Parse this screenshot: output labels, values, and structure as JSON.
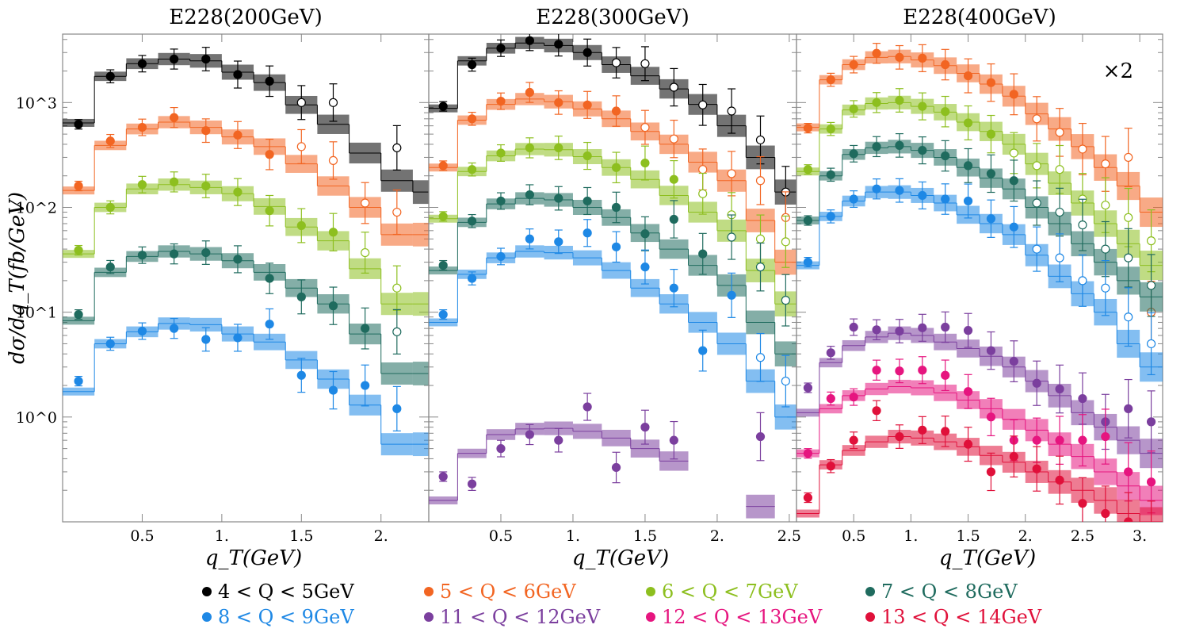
{
  "chart_data": {
    "type": "line",
    "ylabel": "dσ/dq_T(fb/GeV)",
    "xlabel": "q_T(GeV)",
    "y_scale": "log",
    "ylim": [
      0.1,
      4500
    ],
    "y_ticks": [
      "10^0",
      "10^1",
      "10^2",
      "10^3"
    ],
    "multiplier_label": "×2",
    "legend": [
      {
        "label": "4 < Q <  5GeV",
        "color": "#000000"
      },
      {
        "label": "5 < Q <  6GeV",
        "color": "#f26522"
      },
      {
        "label": "6 < Q <  7GeV",
        "color": "#8dbf1f"
      },
      {
        "label": "7 < Q <  8GeV",
        "color": "#1f6b5e"
      },
      {
        "label": "8 < Q <  9GeV",
        "color": "#1e88e5"
      },
      {
        "label": "11 < Q < 12GeV",
        "color": "#7b3f9e"
      },
      {
        "label": "12 < Q < 13GeV",
        "color": "#e6157f"
      },
      {
        "label": "13 < Q < 14GeV",
        "color": "#e0103a"
      }
    ],
    "panels": [
      {
        "title": "E228(200GeV)",
        "xlim": [
          0,
          2.3
        ],
        "x_ticks": [
          "0.5",
          "1.",
          "1.5",
          "2."
        ],
        "bin_edges": [
          0,
          0.2,
          0.4,
          0.6,
          0.8,
          1.0,
          1.2,
          1.4,
          1.6,
          1.8,
          2.0,
          2.2,
          2.3
        ],
        "series": [
          {
            "name": "4 < Q <  5GeV",
            "theory": [
              640,
              1780,
              2350,
              2600,
              2500,
              1950,
              1550,
              950,
              620,
              330,
              180,
              140
            ],
            "data": [
              620,
              1780,
              2350,
              2600,
              2600,
              1850,
              1600,
              1000,
              1000,
              null,
              370,
              null
            ],
            "open_from": 7
          },
          {
            "name": "5 < Q <  6GeV",
            "theory": [
              145,
              390,
              560,
              650,
              580,
              470,
              380,
              260,
              160,
              100,
              55,
              55
            ],
            "data": [
              160,
              430,
              580,
              720,
              540,
              490,
              320,
              380,
              280,
              110,
              90,
              null
            ],
            "open_from": 7
          },
          {
            "name": "6 < Q <  7GeV",
            "theory": [
              36,
              100,
              150,
              165,
              155,
              135,
              102,
              65,
              48,
              26,
              12,
              12
            ],
            "data": [
              39,
              100,
              165,
              175,
              160,
              140,
              93,
              67,
              58,
              37,
              17,
              null
            ],
            "open_from": 9
          },
          {
            "name": "7 < Q <  8GeV",
            "theory": [
              8.3,
              24,
              34,
              38,
              36,
              31,
              24,
              17,
              12,
              6.2,
              2.6,
              2.6
            ],
            "data": [
              9.5,
              27,
              35,
              36,
              37,
              32,
              21,
              14,
              11.5,
              7,
              6.5,
              null
            ],
            "open_from": 10
          },
          {
            "name": "8 < Q <  9GeV",
            "theory": [
              1.75,
              5,
              6.5,
              7.8,
              7.6,
              6.2,
              5.2,
              3.5,
              2.3,
              1.3,
              0.55,
              0.55
            ],
            "data": [
              2.2,
              5,
              6.6,
              7,
              5.5,
              5.7,
              7.7,
              2.5,
              1.8,
              2,
              1.2,
              null
            ],
            "open_from": 99
          }
        ]
      },
      {
        "title": "E228(300GeV)",
        "xlim": [
          0,
          2.55
        ],
        "x_ticks": [
          "0.5",
          "1.",
          "1.5",
          "2.",
          "2.5"
        ],
        "bin_edges": [
          0,
          0.2,
          0.4,
          0.6,
          0.8,
          1.0,
          1.2,
          1.4,
          1.6,
          1.8,
          2.0,
          2.2,
          2.4,
          2.55
        ],
        "series": [
          {
            "name": "4 < Q <  5GeV",
            "theory": [
              880,
              2500,
              3300,
              3700,
              3500,
              3000,
              2300,
              1800,
              1350,
              960,
              600,
              300,
              140
            ],
            "data": [
              920,
              2300,
              3300,
              3900,
              3600,
              3000,
              2400,
              2350,
              1400,
              950,
              830,
              440,
              140
            ],
            "open_from": 6
          },
          {
            "name": "5 < Q <  6GeV",
            "theory": [
              240,
              680,
              960,
              1080,
              1020,
              870,
              700,
              530,
              400,
              270,
              180,
              75,
              30
            ],
            "data": [
              250,
              700,
              1030,
              1250,
              1000,
              950,
              830,
              580,
              450,
              230,
              210,
              180,
              80
            ],
            "open_from": 7
          },
          {
            "name": "6 < Q <  7GeV",
            "theory": [
              78,
              220,
              310,
              360,
              355,
              305,
              240,
              185,
              130,
              90,
              60,
              25,
              12
            ],
            "data": [
              82,
              230,
              330,
              370,
              370,
              310,
              240,
              265,
              185,
              135,
              85,
              50,
              47
            ],
            "open_from": 9
          },
          {
            "name": "7 < Q <  8GeV",
            "theory": [
              25,
              72,
              108,
              122,
              118,
              100,
              80,
              57,
              40,
              28,
              18,
              8,
              4
            ],
            "data": [
              28,
              74,
              115,
              132,
              122,
              115,
              100,
              56,
              77,
              36,
              52,
              27,
              13
            ],
            "open_from": 10
          },
          {
            "name": "8 < Q <  9GeV",
            "theory": [
              8,
              23,
              33,
              38,
              37,
              33,
              25,
              17,
              12,
              8,
              5,
              2.2,
              1
            ],
            "data": [
              9.5,
              21,
              34,
              50,
              47,
              57,
              42,
              27,
              17,
              4.3,
              14.5,
              3.7,
              2.2
            ],
            "open_from": 11
          },
          {
            "name": "11 < Q < 12GeV",
            "theory": [
              0.16,
              0.45,
              0.68,
              0.77,
              0.78,
              0.73,
              0.63,
              0.5,
              0.38,
              null,
              null,
              0.14,
              null
            ],
            "data": [
              0.27,
              0.23,
              0.5,
              0.68,
              0.6,
              1.25,
              0.33,
              0.8,
              0.6,
              null,
              null,
              0.65,
              null
            ],
            "open_from": 99
          }
        ]
      },
      {
        "title": "E228(400GeV)",
        "xlim": [
          0,
          3.2
        ],
        "x_ticks": [
          "0.5",
          "1.",
          "1.5",
          "2.",
          "2.5",
          "3."
        ],
        "bin_edges": [
          0,
          0.2,
          0.4,
          0.6,
          0.8,
          1.0,
          1.2,
          1.4,
          1.6,
          1.8,
          2.0,
          2.2,
          2.4,
          2.6,
          2.8,
          3.0,
          3.2
        ],
        "series": [
          {
            "name": "5 < Q <  6GeV",
            "theory": [
              580,
              1650,
              2300,
              2700,
              2750,
              2550,
              2250,
              1900,
              1500,
              1150,
              780,
              560,
              380,
              240,
              160,
              90
            ],
            "data": [
              570,
              1650,
              2300,
              2950,
              2700,
              2650,
              2300,
              1800,
              1550,
              1200,
              700,
              520,
              360,
              260,
              300,
              10
            ],
            "open_from": 10
          },
          {
            "name": "6 < Q <  7GeV",
            "theory": [
              220,
              560,
              850,
              980,
              1000,
              920,
              810,
              650,
              530,
              400,
              260,
              170,
              110,
              70,
              45,
              28
            ],
            "data": [
              230,
              560,
              870,
              1000,
              1050,
              920,
              820,
              640,
              500,
              330,
              250,
              230,
              120,
              105,
              80,
              48
            ],
            "open_from": 9
          },
          {
            "name": "7 < Q <  8GeV",
            "theory": [
              75,
              200,
              320,
              370,
              380,
              350,
              300,
              240,
              190,
              150,
              100,
              70,
              45,
              30,
              20,
              14
            ],
            "data": [
              75,
              205,
              325,
              380,
              390,
              350,
              310,
              250,
              210,
              180,
              110,
              90,
              68,
              40,
              33,
              18
            ],
            "open_from": 10
          },
          {
            "name": "8 < Q <  9GeV",
            "theory": [
              28,
              82,
              115,
              140,
              140,
              130,
              110,
              85,
              70,
              55,
              35,
              22,
              15,
              10,
              5,
              3
            ],
            "data": [
              30,
              82,
              120,
              150,
              145,
              130,
              120,
              115,
              78,
              65,
              40,
              33,
              20,
              17,
              9,
              5
            ],
            "open_from": 10
          },
          {
            "name": "11 < Q < 12GeV",
            "theory": [
              1.1,
              3.3,
              4.8,
              5.8,
              6.3,
              6.0,
              5.2,
              4.5,
              3.8,
              3.0,
              2.2,
              1.6,
              1.1,
              0.8,
              0.6,
              0.45
            ],
            "data": [
              1.9,
              4.1,
              7.2,
              6.8,
              6.6,
              7.1,
              7.2,
              6.7,
              4.3,
              3.4,
              2.1,
              1.85,
              1.5,
              0.9,
              1.2,
              0.9
            ],
            "open_from": 99
          },
          {
            "name": "12 < Q < 13GeV",
            "theory": [
              0.45,
              1.2,
              1.6,
              1.85,
              1.95,
              1.9,
              1.7,
              1.45,
              1.2,
              0.95,
              0.75,
              0.55,
              0.42,
              0.3,
              0.22,
              0.16
            ],
            "data": [
              0.45,
              1.5,
              1.55,
              2.8,
              2.75,
              2.8,
              2.5,
              1.75,
              1.0,
              0.6,
              0.6,
              0.6,
              0.6,
              0.65,
              0.3,
              0.24
            ],
            "open_from": 99
          },
          {
            "name": "13 < Q < 14GeV",
            "theory": [
              0.12,
              0.35,
              0.48,
              0.58,
              0.65,
              0.63,
              0.58,
              0.52,
              0.43,
              0.37,
              0.3,
              0.24,
              0.2,
              0.16,
              0.12,
              0.1
            ],
            "data": [
              0.17,
              0.34,
              0.6,
              1.15,
              0.65,
              0.75,
              0.73,
              0.55,
              0.3,
              0.42,
              0.32,
              0.25,
              0.15,
              0.12,
              0.1,
              0.08
            ],
            "open_from": 99
          }
        ]
      }
    ]
  }
}
